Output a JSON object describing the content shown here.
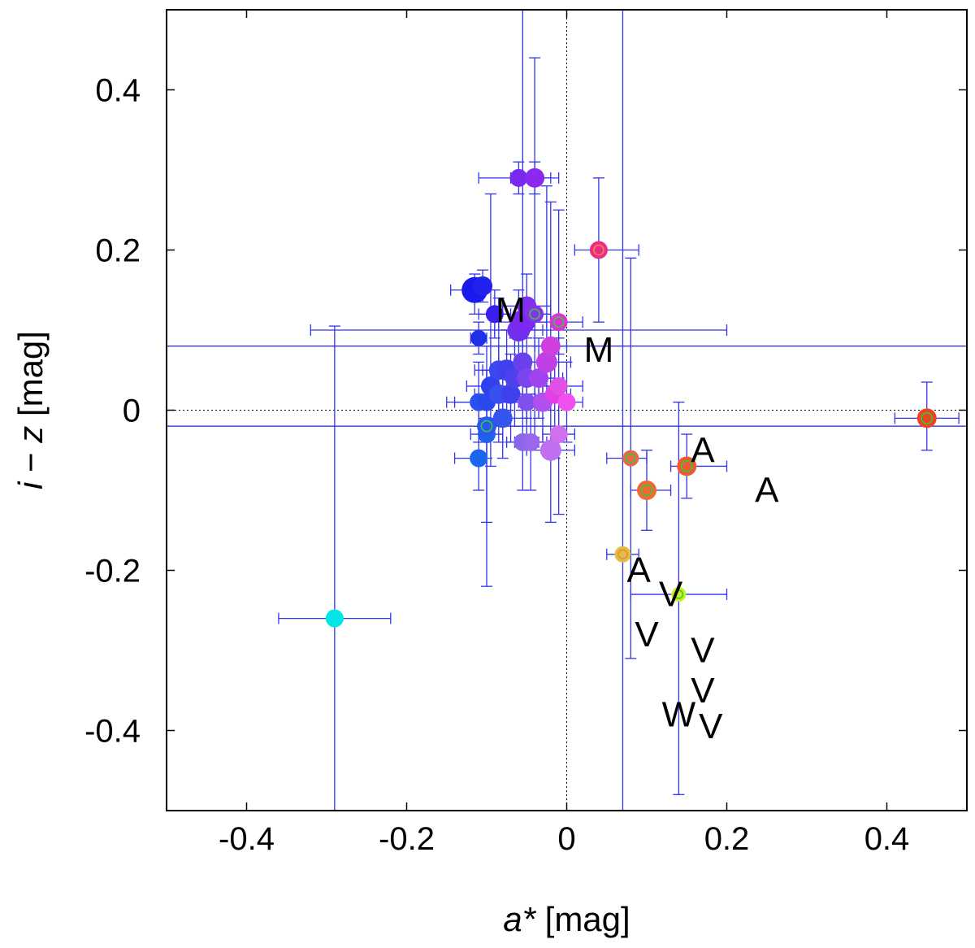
{
  "chart_data": {
    "type": "scatter",
    "title": "",
    "xlabel_main": "a*",
    "xlabel_unit": " [mag]",
    "ylabel_i": "i",
    "ylabel_mid": " − ",
    "ylabel_z": "z",
    "ylabel_unit": " [mag]",
    "xlim": [
      -0.5,
      0.5
    ],
    "ylim": [
      -0.5,
      0.5
    ],
    "xticks": [
      -0.4,
      -0.2,
      0,
      0.2,
      0.4
    ],
    "xtick_labels": [
      "-0.4",
      "-0.2",
      "0",
      "0.2",
      "0.4"
    ],
    "yticks": [
      -0.4,
      -0.2,
      0,
      0.2,
      0.4
    ],
    "ytick_labels": [
      "-0.4",
      "-0.2",
      "0",
      "0.2",
      "0.4"
    ],
    "zero_lines": {
      "x": 0,
      "y": 0,
      "style": "dotted"
    },
    "errorbar_color": "#3333ee",
    "points": [
      {
        "x": -0.29,
        "y": -0.26,
        "xerr": [
          0.07,
          0.07
        ],
        "yerr": [
          0.24,
          0.365
        ],
        "size": 11,
        "color": "#00e6e6"
      },
      {
        "x": -0.115,
        "y": 0.15,
        "xerr": [
          0.03,
          0.01
        ],
        "yerr": [
          0.03,
          0.02
        ],
        "size": 16,
        "color": "#1a1aee"
      },
      {
        "x": -0.105,
        "y": 0.155,
        "xerr": [
          0.01,
          0.01
        ],
        "yerr": [
          0.02,
          0.02
        ],
        "size": 12,
        "color": "#2222ee"
      },
      {
        "x": -0.11,
        "y": 0.09,
        "xerr": [
          0.01,
          0.01
        ],
        "yerr": [
          0.02,
          0.02
        ],
        "size": 10,
        "color": "#2030e8"
      },
      {
        "x": -0.09,
        "y": 0.12,
        "xerr": [
          0.02,
          0.02
        ],
        "yerr": [
          0.03,
          0.03
        ],
        "size": 11,
        "color": "#3a20ee"
      },
      {
        "x": -0.11,
        "y": 0.01,
        "xerr": [
          0.04,
          0.04
        ],
        "yerr": [
          0.05,
          0.05
        ],
        "size": 11,
        "color": "#2a50f0"
      },
      {
        "x": -0.1,
        "y": 0.01,
        "xerr": [
          0.04,
          0.04
        ],
        "yerr": [
          0.07,
          0.07
        ],
        "size": 11,
        "color": "#2a48ee"
      },
      {
        "x": -0.11,
        "y": -0.06,
        "xerr": [
          0.03,
          0.01
        ],
        "yerr": [
          0.04,
          0.04
        ],
        "size": 11,
        "color": "#1a66ee"
      },
      {
        "x": -0.1,
        "y": -0.03,
        "xerr": [
          0.02,
          0.02
        ],
        "yerr": [
          0.19,
          0.08
        ],
        "size": 11,
        "color": "#2060ee"
      },
      {
        "x": -0.1,
        "y": -0.02,
        "xerr": [
          0.01,
          0.01
        ],
        "yerr": [
          0.12,
          0.07
        ],
        "size": 12,
        "color": "#2a58ee",
        "ring": "#2ecc40"
      },
      {
        "x": -0.095,
        "y": 0.03,
        "xerr": [
          0.03,
          0.03
        ],
        "yerr": [
          0.1,
          0.24
        ],
        "size": 12,
        "color": "#3040ee"
      },
      {
        "x": -0.085,
        "y": 0.05,
        "xerr": [
          0.03,
          0.03
        ],
        "yerr": [
          0.07,
          0.09
        ],
        "size": 12,
        "color": "#3a48ee"
      },
      {
        "x": -0.085,
        "y": 0.02,
        "xerr": [
          0.03,
          0.03
        ],
        "yerr": [
          0.06,
          0.06
        ],
        "size": 12,
        "color": "#3850ee"
      },
      {
        "x": -0.08,
        "y": -0.01,
        "xerr": [
          0.03,
          0.03
        ],
        "yerr": [
          0.05,
          0.06
        ],
        "size": 12,
        "color": "#3355ee"
      },
      {
        "x": -0.075,
        "y": 0.05,
        "xerr": [
          0.03,
          0.03
        ],
        "yerr": [
          0.05,
          0.05
        ],
        "size": 13,
        "color": "#4040ee"
      },
      {
        "x": -0.07,
        "y": 0.02,
        "xerr": [
          0.03,
          0.03
        ],
        "yerr": [
          0.06,
          0.05
        ],
        "size": 12,
        "color": "#4040ee"
      },
      {
        "x": -0.065,
        "y": 0.04,
        "xerr": [
          0.03,
          0.03
        ],
        "yerr": [
          0.06,
          0.05
        ],
        "size": 12,
        "color": "#5040ee"
      },
      {
        "x": -0.06,
        "y": 0.29,
        "xerr": [
          0.05,
          0.04
        ],
        "yerr": [
          0.02,
          0.02
        ],
        "size": 11,
        "color": "#7a2aee"
      },
      {
        "x": -0.04,
        "y": 0.29,
        "xerr": [
          0.03,
          0.03
        ],
        "yerr": [
          0.02,
          0.02
        ],
        "size": 12,
        "color": "#8a2aee"
      },
      {
        "x": -0.06,
        "y": 0.1,
        "xerr": [
          0.03,
          0.03
        ],
        "yerr": [
          0.05,
          0.05
        ],
        "size": 14,
        "color": "#7030ee"
      },
      {
        "x": -0.055,
        "y": 0.11,
        "xerr": [
          0.03,
          0.03
        ],
        "yerr": [
          0.05,
          0.4
        ],
        "size": 15,
        "color": "#7a2aee"
      },
      {
        "x": -0.05,
        "y": 0.13,
        "xerr": [
          0.03,
          0.03
        ],
        "yerr": [
          0.04,
          0.04
        ],
        "size": 12,
        "color": "#8030ee"
      },
      {
        "x": -0.04,
        "y": 0.12,
        "xerr": [
          0.02,
          0.02
        ],
        "yerr": [
          0.16,
          0.32
        ],
        "size": 11,
        "color": "#8a30ee",
        "ring": "#2ecc40"
      },
      {
        "x": -0.055,
        "y": 0.06,
        "xerr": [
          0.03,
          0.03
        ],
        "yerr": [
          0.06,
          0.05
        ],
        "size": 12,
        "color": "#6a40ee"
      },
      {
        "x": -0.05,
        "y": 0.04,
        "xerr": [
          0.03,
          0.03
        ],
        "yerr": [
          0.05,
          0.05
        ],
        "size": 12,
        "color": "#7a44ee"
      },
      {
        "x": -0.05,
        "y": 0.01,
        "xerr": [
          0.03,
          0.03
        ],
        "yerr": [
          0.05,
          0.05
        ],
        "size": 11,
        "color": "#8050ee"
      },
      {
        "x": -0.055,
        "y": -0.04,
        "xerr": [
          0.02,
          0.02
        ],
        "yerr": [
          0.06,
          0.06
        ],
        "size": 11,
        "color": "#8866ee"
      },
      {
        "x": -0.045,
        "y": -0.04,
        "xerr": [
          0.02,
          0.02
        ],
        "yerr": [
          0.06,
          0.06
        ],
        "size": 11,
        "color": "#9a66ee"
      },
      {
        "x": -0.035,
        "y": 0.04,
        "xerr": [
          0.03,
          0.03
        ],
        "yerr": [
          0.05,
          0.05
        ],
        "size": 12,
        "color": "#a044ee"
      },
      {
        "x": -0.03,
        "y": 0.01,
        "xerr": [
          0.03,
          0.03
        ],
        "yerr": [
          0.05,
          0.05
        ],
        "size": 12,
        "color": "#b050ee"
      },
      {
        "x": -0.025,
        "y": 0.06,
        "xerr": [
          0.03,
          0.03
        ],
        "yerr": [
          0.06,
          0.22
        ],
        "size": 13,
        "color": "#c040e6"
      },
      {
        "x": -0.02,
        "y": 0.08,
        "xerr": [
          0.02,
          0.02
        ],
        "yerr": [
          0.06,
          0.18
        ],
        "size": 12,
        "color": "#d040e0"
      },
      {
        "x": -0.02,
        "y": -0.05,
        "xerr": [
          0.03,
          0.03
        ],
        "yerr": [
          0.09,
          0.08
        ],
        "size": 13,
        "color": "#c070ee"
      },
      {
        "x": -0.01,
        "y": -0.03,
        "xerr": [
          0.02,
          0.02
        ],
        "yerr": [
          0.1,
          0.07
        ],
        "size": 11,
        "color": "#d070ee"
      },
      {
        "x": -0.015,
        "y": 0.02,
        "xerr": [
          0.02,
          0.02
        ],
        "yerr": [
          0.08,
          0.07
        ],
        "size": 12,
        "color": "#e040e6"
      },
      {
        "x": -0.01,
        "y": 0.03,
        "xerr": [
          0.02,
          0.03
        ],
        "yerr": [
          0.06,
          0.06
        ],
        "size": 11,
        "color": "#e050e6"
      },
      {
        "x": 0.0,
        "y": 0.01,
        "xerr": [
          0.02,
          0.02
        ],
        "yerr": [
          0.05,
          0.05
        ],
        "size": 11,
        "color": "#f050ee"
      },
      {
        "x": -0.01,
        "y": 0.11,
        "xerr": [
          0.03,
          0.03
        ],
        "yerr": [
          0.04,
          0.14
        ],
        "size": 11,
        "color": "#e030d8",
        "ring": "#2ecc40"
      },
      {
        "x": 0.04,
        "y": 0.2,
        "xerr": [
          0.03,
          0.05
        ],
        "yerr": [
          0.09,
          0.09
        ],
        "size": 11,
        "color": "#ee2a88",
        "ring": "#ee8844"
      },
      {
        "x": -0.02,
        "y": 0.08,
        "xerr": [
          0.6,
          0.6
        ],
        "yerr": [
          0,
          0
        ],
        "size": 0,
        "color": "#3333ee"
      },
      {
        "x": -0.02,
        "y": -0.02,
        "xerr": [
          0.6,
          0.6
        ],
        "yerr": [
          0,
          0
        ],
        "size": 0,
        "color": "#3333ee"
      },
      {
        "x": 0.0,
        "y": 0.1,
        "xerr": [
          0.32,
          0.2
        ],
        "yerr": [
          0,
          0
        ],
        "size": 0,
        "color": "#3333ee"
      },
      {
        "x": 0.07,
        "y": -0.18,
        "xerr": [
          0.02,
          0.02
        ],
        "yerr": [
          0.35,
          0.69
        ],
        "size": 10,
        "color": "#e0c040",
        "ring": "#ee8844"
      },
      {
        "x": 0.08,
        "y": -0.06,
        "xerr": [
          0.03,
          0.02
        ],
        "yerr": [
          0.25,
          0.25
        ],
        "size": 10,
        "color": "#ee6644",
        "ring": "#2ecc40"
      },
      {
        "x": 0.1,
        "y": -0.1,
        "xerr": [
          0.02,
          0.03
        ],
        "yerr": [
          0.05,
          0.05
        ],
        "size": 12,
        "color": "#ee6a30",
        "ring": "#2ecc40"
      },
      {
        "x": 0.15,
        "y": -0.07,
        "xerr": [
          0.02,
          0.05
        ],
        "yerr": [
          0.04,
          0.04
        ],
        "size": 12,
        "color": "#ee5a30",
        "ring": "#2ecc40"
      },
      {
        "x": 0.14,
        "y": -0.23,
        "xerr": [
          0.06,
          0.06
        ],
        "yerr": [
          0.25,
          0.24
        ],
        "size": 9,
        "color": "#ccee22",
        "ring": "#2ecc40"
      },
      {
        "x": 0.45,
        "y": -0.01,
        "xerr": [
          0.04,
          0.04
        ],
        "yerr": [
          0.04,
          0.045
        ],
        "size": 12,
        "color": "#ee4422",
        "ring": "#2ecc40"
      }
    ],
    "class_labels": [
      {
        "text": "M",
        "x": -0.07,
        "y": 0.125
      },
      {
        "text": "M",
        "x": 0.04,
        "y": 0.075
      },
      {
        "text": "A",
        "x": 0.17,
        "y": -0.05
      },
      {
        "text": "A",
        "x": 0.25,
        "y": -0.1
      },
      {
        "text": "A",
        "x": 0.09,
        "y": -0.2
      },
      {
        "text": "V",
        "x": 0.13,
        "y": -0.23
      },
      {
        "text": "V",
        "x": 0.1,
        "y": -0.28
      },
      {
        "text": "V",
        "x": 0.17,
        "y": -0.3
      },
      {
        "text": "V",
        "x": 0.17,
        "y": -0.35
      },
      {
        "text": "W",
        "x": 0.14,
        "y": -0.38
      },
      {
        "text": "V",
        "x": 0.18,
        "y": -0.395
      }
    ]
  }
}
